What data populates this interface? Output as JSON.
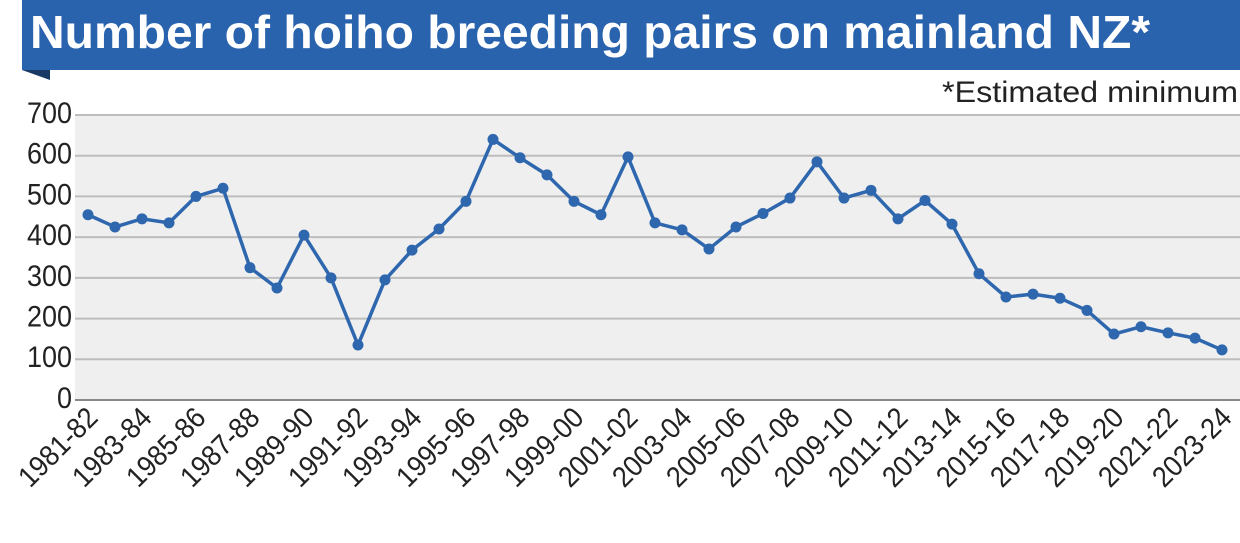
{
  "chart_data": {
    "type": "line",
    "title": "Number of hoiho breeding pairs on mainland NZ*",
    "subtitle": "*Estimated minimum",
    "categories": [
      "1981-82",
      null,
      "1983-84",
      null,
      "1985-86",
      null,
      "1987-88",
      null,
      "1989-90",
      null,
      "1991-92",
      null,
      "1993-94",
      null,
      "1995-96",
      null,
      "1997-98",
      null,
      "1999-00",
      null,
      "2001-02",
      null,
      "2003-04",
      null,
      "2005-06",
      null,
      "2007-08",
      null,
      "2009-10",
      null,
      "2011-12",
      null,
      "2013-14",
      null,
      "2015-16",
      null,
      "2017-18",
      null,
      "2019-20",
      null,
      "2021-22",
      null,
      "2023-24"
    ],
    "series": [
      {
        "color": "#2e67ae",
        "values": [
          455,
          425,
          445,
          435,
          500,
          520,
          325,
          275,
          405,
          300,
          135,
          295,
          368,
          420,
          488,
          640,
          595,
          553,
          488,
          455,
          597,
          435,
          418,
          371,
          425,
          458,
          496,
          585,
          496,
          515,
          445,
          490,
          432,
          310,
          253,
          260,
          250,
          220,
          162,
          180,
          165,
          152,
          123
        ]
      }
    ],
    "ylim": [
      0,
      700
    ],
    "yticks": [
      0,
      100,
      200,
      300,
      400,
      500,
      600,
      700
    ],
    "grid": true
  }
}
